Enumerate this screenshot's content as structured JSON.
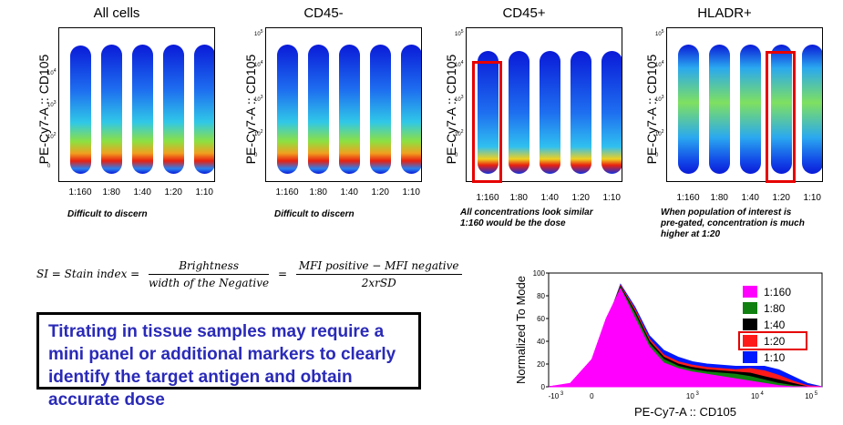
{
  "panels": [
    {
      "title": "All cells",
      "ylabel": "PE-Cy7-A :: CD105",
      "xticks": [
        "1:160",
        "1:80",
        "1:40",
        "1:20",
        "1:10"
      ],
      "caption": [
        "Difficult to discern"
      ],
      "yticks": [
        "10^4",
        "10^3",
        "10^2",
        "0"
      ]
    },
    {
      "title": "CD45-",
      "ylabel": "PE-Cy7-A :: CD105",
      "xticks": [
        "1:160",
        "1:80",
        "1:40",
        "1:20",
        "1:10"
      ],
      "caption": [
        "Difficult to discern"
      ],
      "yticks": [
        "10^5",
        "10^4",
        "10^3",
        "10^2",
        "0"
      ]
    },
    {
      "title": "CD45+",
      "ylabel": "PE-Cy7-A :: CD105",
      "xticks": [
        "1:160",
        "1:80",
        "1:40",
        "1:20",
        "1:10"
      ],
      "caption": [
        "All concentrations look similar",
        "1:160 would be the dose"
      ],
      "yticks": [
        "10^5",
        "10^4",
        "10^3",
        "10^2",
        "0"
      ]
    },
    {
      "title": "HLADR+",
      "ylabel": "PE-Cy7-A :: CD105",
      "xticks": [
        "1:160",
        "1:80",
        "1:40",
        "1:20",
        "1:10"
      ],
      "caption": [
        "When population of interest is",
        "pre-gated, concentration is much",
        "higher at 1:20"
      ],
      "yticks": [
        "10^5",
        "10^4",
        "10^3",
        "10^2",
        "0"
      ]
    }
  ],
  "formula": {
    "lhs": "SI = Stain index =",
    "frac1_num": "Brightness",
    "frac1_den": "width of the Negative",
    "frac2_num": "MFI positive − MFI negative",
    "frac2_den": "2xrSD"
  },
  "message": "Titrating in tissue samples may require a mini panel or additional markers to clearly identify the target antigen and obtain accurate dose",
  "colors": {
    "accent_red": "#e60000",
    "message_text": "#2a2ab8"
  },
  "chart_data": [
    {
      "type": "heatmap",
      "title": "All cells",
      "xlabel": "",
      "ylabel": "PE-Cy7-A :: CD105",
      "categories": [
        "1:160",
        "1:80",
        "1:40",
        "1:20",
        "1:10"
      ],
      "peak_log": [
        1.2,
        1.3,
        1.4,
        1.5,
        1.6
      ]
    },
    {
      "type": "heatmap",
      "title": "CD45-",
      "xlabel": "",
      "ylabel": "PE-Cy7-A :: CD105",
      "categories": [
        "1:160",
        "1:80",
        "1:40",
        "1:20",
        "1:10"
      ],
      "peak_log": [
        1.4,
        1.5,
        1.6,
        1.7,
        1.9
      ]
    },
    {
      "type": "heatmap",
      "title": "CD45+",
      "xlabel": "",
      "ylabel": "PE-Cy7-A :: CD105",
      "categories": [
        "1:160",
        "1:80",
        "1:40",
        "1:20",
        "1:10"
      ],
      "peak_log": [
        0.6,
        0.6,
        0.6,
        0.6,
        0.6
      ],
      "highlighted": "1:160"
    },
    {
      "type": "heatmap",
      "title": "HLADR+",
      "xlabel": "",
      "ylabel": "PE-Cy7-A :: CD105",
      "categories": [
        "1:160",
        "1:80",
        "1:40",
        "1:20",
        "1:10"
      ],
      "peak_log": [
        2.4,
        2.6,
        2.8,
        3.2,
        3.3
      ],
      "highlighted": "1:20"
    },
    {
      "type": "area",
      "title": "",
      "xlabel": "PE-Cy7-A :: CD105",
      "ylabel": "Normalized To Mode",
      "ylim": [
        0,
        100
      ],
      "yticks": [
        0,
        20,
        40,
        60,
        80,
        100
      ],
      "xticks": [
        "-10 3",
        "0",
        "10 3",
        "10 4",
        "10 5"
      ],
      "x": [
        -0.6,
        -0.3,
        0.0,
        0.2,
        0.4,
        0.6,
        0.8,
        1.0,
        1.2,
        1.4,
        1.6,
        1.8,
        2.0,
        2.2,
        2.4,
        2.6,
        2.8,
        3.0,
        3.2
      ],
      "series": [
        {
          "name": "1:10",
          "color": "#0018ff",
          "values": [
            0,
            2,
            20,
            55,
            90,
            70,
            45,
            32,
            26,
            22,
            20,
            19,
            18,
            18,
            18,
            15,
            9,
            3,
            0
          ]
        },
        {
          "name": "1:20",
          "color": "#ff1a1a",
          "values": [
            0,
            2,
            20,
            56,
            89,
            68,
            42,
            28,
            22,
            19,
            17,
            16,
            15,
            16,
            14,
            10,
            5,
            1,
            0
          ]
        },
        {
          "name": "1:40",
          "color": "#000000",
          "values": [
            0,
            2,
            21,
            57,
            88,
            66,
            40,
            26,
            20,
            17,
            15,
            14,
            13,
            12,
            9,
            6,
            3,
            0,
            0
          ]
        },
        {
          "name": "1:80",
          "color": "#108010",
          "values": [
            0,
            2,
            22,
            58,
            87,
            64,
            38,
            24,
            18,
            15,
            13,
            12,
            11,
            9,
            6,
            3,
            1,
            0,
            0
          ]
        },
        {
          "name": "1:160",
          "color": "#ff00ff",
          "values": [
            0,
            3,
            24,
            60,
            86,
            60,
            35,
            21,
            16,
            13,
            11,
            9,
            7,
            5,
            3,
            1,
            0,
            0,
            0
          ]
        }
      ],
      "legend": {
        "position": "right",
        "highlighted": "1:20"
      }
    }
  ]
}
